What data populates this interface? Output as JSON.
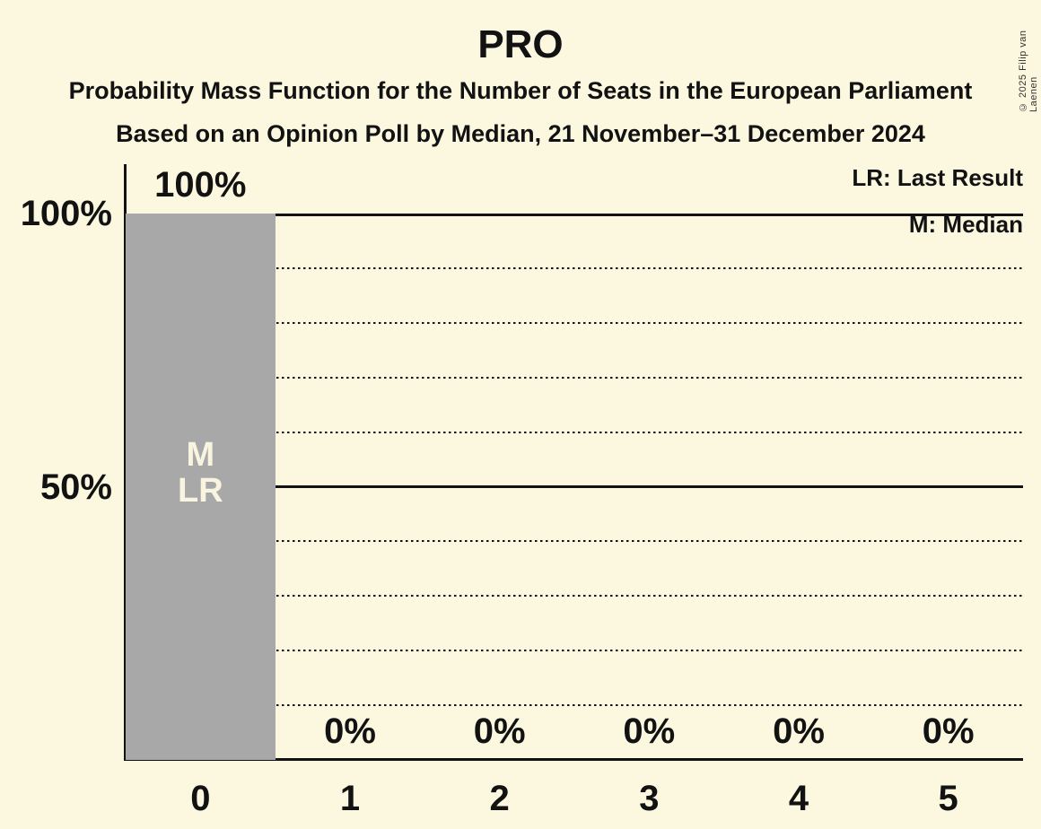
{
  "header": {
    "title": "PRO",
    "subtitle": "Probability Mass Function for the Number of Seats in the European Parliament",
    "poll_line": "Based on an Opinion Poll by Median, 21 November–31 December 2024"
  },
  "copyright": "© 2025 Filip van Laenen",
  "chart_data": {
    "type": "bar",
    "title": "PRO",
    "categories": [
      "0",
      "1",
      "2",
      "3",
      "4",
      "5"
    ],
    "values": [
      100,
      0,
      0,
      0,
      0,
      0
    ],
    "bar_labels": [
      "100%",
      "0%",
      "0%",
      "0%",
      "0%",
      "0%"
    ],
    "y_ticks": [
      {
        "label": "100%",
        "value": 100
      },
      {
        "label": "50%",
        "value": 50
      }
    ],
    "ylim": [
      0,
      100
    ],
    "gridlines": {
      "dotted": [
        10,
        20,
        30,
        40,
        60,
        70,
        80,
        90
      ],
      "solid": [
        50,
        100
      ]
    },
    "legend": {
      "lr": "LR: Last Result",
      "m": "M: Median"
    },
    "bar_annotations": [
      {
        "index": 0,
        "lines": [
          "M",
          "LR"
        ]
      }
    ],
    "xlabel": "",
    "ylabel": "",
    "colors": {
      "background": "#FCF8E0",
      "bar": "#A8A8A8",
      "bar_label_text": "#F8F4DF",
      "text": "#121212"
    }
  }
}
